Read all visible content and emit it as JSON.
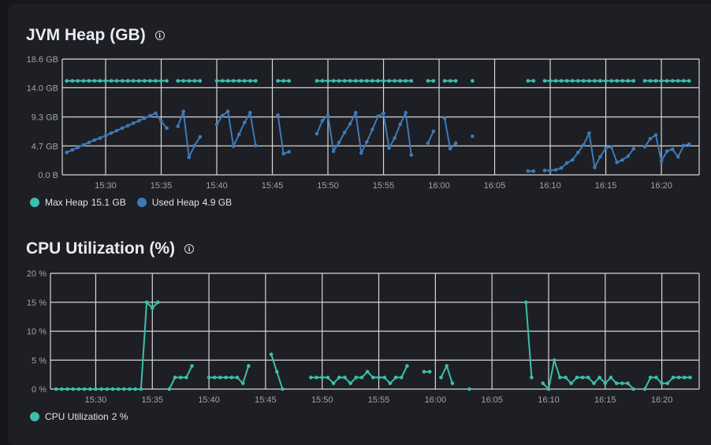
{
  "colors": {
    "teal": "#3bbfad",
    "blue": "#3d7ab8",
    "grid": "#d6d6d6"
  },
  "heap_panel": {
    "title": "JVM Heap (GB)",
    "info_icon": "info-circle-icon",
    "legend": [
      {
        "label": "Max Heap",
        "value": "15.1 GB",
        "color": "#3bbfad"
      },
      {
        "label": "Used Heap",
        "value": "4.9 GB",
        "color": "#3d7ab8"
      }
    ]
  },
  "cpu_panel": {
    "title": "CPU Utilization (%)",
    "info_icon": "info-circle-icon",
    "legend": [
      {
        "label": "CPU Utilization",
        "value": "2 %",
        "color": "#3bbfad"
      }
    ]
  },
  "chart_data": [
    {
      "type": "line",
      "title": "JVM Heap (GB)",
      "xlim": [
        "15:26:06",
        "16:23:24"
      ],
      "ylim": [
        0,
        18.6
      ],
      "yticks": [
        {
          "v": 18.6,
          "label": "18.6 GB"
        },
        {
          "v": 14.0,
          "label": "14.0 GB"
        },
        {
          "v": 9.3,
          "label": "9.3 GB"
        },
        {
          "v": 4.65,
          "label": "4.7 GB"
        },
        {
          "v": 0,
          "label": "0.0 B"
        }
      ],
      "xticks": [
        "15:30",
        "15:35",
        "15:40",
        "15:45",
        "15:50",
        "15:55",
        "16:00",
        "16:05",
        "16:10",
        "16:15",
        "16:20"
      ],
      "grid": true,
      "step_seconds": 30,
      "series": [
        {
          "name": "Max Heap",
          "color": "#3bbfad",
          "segments": [
            {
              "start": "15:26:30",
              "values": [
                15.1,
                15.1,
                15.1,
                15.1,
                15.1,
                15.1,
                15.1,
                15.1,
                15.1,
                15.1,
                15.1,
                15.1,
                15.1,
                15.1,
                15.1,
                15.1,
                15.1,
                15.1,
                15.1
              ]
            },
            {
              "start": "15:36:30",
              "values": [
                15.1,
                15.1,
                15.1,
                15.1,
                15.1
              ]
            },
            {
              "start": "15:40:00",
              "values": [
                15.1,
                15.1,
                15.1,
                15.1,
                15.1,
                15.1,
                15.1,
                15.1
              ]
            },
            {
              "start": "15:45:30",
              "values": [
                15.1,
                15.1,
                15.1
              ]
            },
            {
              "start": "15:49:00",
              "values": [
                15.1,
                15.1,
                15.1,
                15.1,
                15.1,
                15.1,
                15.1,
                15.1,
                15.1,
                15.1,
                15.1,
                15.1,
                15.1,
                15.1,
                15.1,
                15.1,
                15.1,
                15.1
              ]
            },
            {
              "start": "15:59:00",
              "values": [
                15.1,
                15.1
              ]
            },
            {
              "start": "16:00:30",
              "values": [
                15.1,
                15.1,
                15.1
              ]
            },
            {
              "start": "16:03:00",
              "values": [
                15.1
              ]
            },
            {
              "start": "16:08:00",
              "values": [
                15.1,
                15.1
              ]
            },
            {
              "start": "16:09:30",
              "values": [
                15.1,
                15.1,
                15.1,
                15.1,
                15.1,
                15.1,
                15.1,
                15.1,
                15.1,
                15.1,
                15.1,
                15.1,
                15.1,
                15.1,
                15.1,
                15.1,
                15.1
              ]
            },
            {
              "start": "16:18:30",
              "values": [
                15.1,
                15.1,
                15.1,
                15.1,
                15.1,
                15.1,
                15.1,
                15.1,
                15.1
              ]
            }
          ]
        },
        {
          "name": "Used Heap",
          "color": "#3d7ab8",
          "segments": [
            {
              "start": "15:26:30",
              "values": [
                3.6,
                4.0,
                4.4,
                4.8,
                5.2,
                5.6,
                5.9,
                6.3,
                6.7,
                7.1,
                7.5,
                7.9,
                8.3,
                8.7,
                9.1,
                9.5,
                9.9,
                8.6,
                7.5
              ]
            },
            {
              "start": "15:36:30",
              "values": [
                7.8,
                10.2,
                2.8,
                4.7,
                6.1
              ]
            },
            {
              "start": "15:40:00",
              "values": [
                8.1,
                9.5,
                10.2,
                4.6,
                6.5,
                8.4,
                10.0,
                4.7
              ]
            },
            {
              "start": "15:45:30",
              "values": [
                9.6,
                3.4,
                3.7
              ]
            },
            {
              "start": "15:49:00",
              "values": [
                6.6,
                8.7,
                9.6,
                3.8,
                5.2,
                6.8,
                8.2,
                10.0,
                3.5,
                5.3,
                7.3,
                9.4,
                9.9,
                4.3,
                5.9,
                8.1,
                10.0,
                3.2
              ]
            },
            {
              "start": "15:59:00",
              "values": [
                5.1,
                7.0
              ]
            },
            {
              "start": "16:00:30",
              "values": [
                9.1,
                4.2,
                5.1
              ]
            },
            {
              "start": "16:03:00",
              "values": [
                6.2
              ]
            },
            {
              "start": "16:08:00",
              "values": [
                0.6,
                0.6
              ]
            },
            {
              "start": "16:09:30",
              "values": [
                0.7,
                0.7,
                0.8,
                1.1,
                1.9,
                2.4,
                3.6,
                4.8,
                6.7,
                1.2,
                2.9,
                4.3,
                4.5,
                2.0,
                2.4,
                3.0,
                4.2
              ]
            },
            {
              "start": "16:18:30",
              "values": [
                4.5,
                5.8,
                6.4,
                2.2,
                3.8,
                4.1,
                2.9,
                4.7,
                4.9
              ]
            }
          ]
        }
      ]
    },
    {
      "type": "line",
      "title": "CPU Utilization (%)",
      "xlim": [
        "15:26:00",
        "16:23:18"
      ],
      "ylim": [
        0,
        20
      ],
      "yticks": [
        {
          "v": 20,
          "label": "20 %"
        },
        {
          "v": 15,
          "label": "15 %"
        },
        {
          "v": 10,
          "label": "10 %"
        },
        {
          "v": 5,
          "label": "5 %"
        },
        {
          "v": 0,
          "label": "0 %"
        }
      ],
      "xticks": [
        "15:30",
        "15:35",
        "15:40",
        "15:45",
        "15:50",
        "15:55",
        "16:00",
        "16:05",
        "16:10",
        "16:15",
        "16:20"
      ],
      "grid": true,
      "step_seconds": 30,
      "series": [
        {
          "name": "CPU Utilization",
          "color": "#3bbfad",
          "segments": [
            {
              "start": "15:26:30",
              "values": [
                0,
                0,
                0,
                0,
                0,
                0,
                0,
                0,
                0,
                0,
                0,
                0,
                0,
                0,
                0,
                0,
                15,
                14,
                15
              ]
            },
            {
              "start": "15:36:30",
              "values": [
                0,
                2,
                2,
                2,
                4
              ]
            },
            {
              "start": "15:40:00",
              "values": [
                2,
                2,
                2,
                2,
                2,
                2,
                1,
                4
              ]
            },
            {
              "start": "15:45:30",
              "values": [
                6,
                3,
                0
              ]
            },
            {
              "start": "15:49:00",
              "values": [
                2,
                2,
                2,
                2,
                1,
                2,
                2,
                1,
                2,
                2,
                3,
                2,
                2,
                2,
                1,
                2,
                2,
                4
              ]
            },
            {
              "start": "15:59:00",
              "values": [
                3,
                3
              ]
            },
            {
              "start": "16:00:30",
              "values": [
                2,
                4,
                1
              ]
            },
            {
              "start": "16:03:00",
              "values": [
                0
              ]
            },
            {
              "start": "16:08:00",
              "values": [
                15,
                2
              ]
            },
            {
              "start": "16:09:30",
              "values": [
                1,
                0,
                5,
                2,
                2,
                1,
                2,
                2,
                2,
                1,
                2,
                1,
                2,
                1,
                1,
                1,
                0
              ]
            },
            {
              "start": "16:18:30",
              "values": [
                0,
                2,
                2,
                1,
                1,
                2,
                2,
                2,
                2
              ]
            }
          ]
        }
      ]
    }
  ]
}
